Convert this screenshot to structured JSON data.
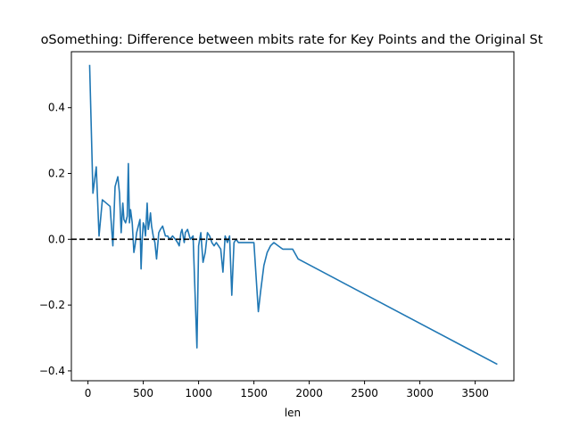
{
  "chart_data": {
    "type": "line",
    "title": "oSomething: Difference between mbits rate for Key Points and the Original St",
    "xlabel": "len",
    "ylabel": "",
    "xlim": [
      -150,
      3850
    ],
    "ylim": [
      -0.43,
      0.57
    ],
    "x_ticks": [
      0,
      500,
      1000,
      1500,
      2000,
      2500,
      3000,
      3500
    ],
    "x_tick_labels": [
      "0",
      "500",
      "1000",
      "1500",
      "2000",
      "2500",
      "3000",
      "3500"
    ],
    "y_ticks": [
      -0.4,
      -0.2,
      0.0,
      0.2,
      0.4
    ],
    "y_tick_labels": [
      "−0.4",
      "−0.2",
      "0.0",
      "0.2",
      "0.4"
    ],
    "grid": false,
    "reference_line": {
      "y": 0.0,
      "style": "dashed",
      "color": "#000000"
    },
    "series": [
      {
        "color": "#1f77b4",
        "x": [
          15,
          45,
          75,
          100,
          130,
          200,
          225,
          245,
          270,
          285,
          300,
          315,
          325,
          340,
          355,
          365,
          375,
          385,
          400,
          415,
          425,
          440,
          455,
          470,
          480,
          490,
          500,
          510,
          520,
          535,
          545,
          555,
          565,
          575,
          590,
          605,
          620,
          640,
          655,
          675,
          700,
          720,
          740,
          765,
          790,
          810,
          825,
          840,
          850,
          860,
          870,
          880,
          900,
          925,
          950,
          985,
          1000,
          1020,
          1040,
          1060,
          1080,
          1100,
          1120,
          1140,
          1160,
          1180,
          1200,
          1220,
          1240,
          1260,
          1280,
          1300,
          1320,
          1340,
          1360,
          1380,
          1400,
          1430,
          1460,
          1500,
          1540,
          1560,
          1590,
          1620,
          1650,
          1680,
          1720,
          1760,
          1800,
          1850,
          1900,
          3700
        ],
        "y": [
          0.53,
          0.14,
          0.22,
          0.01,
          0.12,
          0.1,
          -0.02,
          0.16,
          0.19,
          0.14,
          0.02,
          0.11,
          0.06,
          0.05,
          0.07,
          0.23,
          0.05,
          0.09,
          0.05,
          -0.04,
          -0.02,
          0.02,
          0.04,
          0.06,
          -0.09,
          0.0,
          0.05,
          0.04,
          0.01,
          0.11,
          0.03,
          0.05,
          0.08,
          0.04,
          0.01,
          -0.01,
          -0.06,
          0.02,
          0.03,
          0.04,
          0.01,
          0.01,
          0.0,
          0.01,
          0.0,
          -0.01,
          -0.02,
          0.02,
          0.03,
          0.01,
          -0.01,
          0.02,
          0.03,
          0.0,
          0.01,
          -0.33,
          -0.02,
          0.02,
          -0.07,
          -0.04,
          0.02,
          0.01,
          -0.01,
          -0.02,
          -0.01,
          -0.02,
          -0.03,
          -0.1,
          0.01,
          -0.01,
          0.01,
          -0.17,
          -0.01,
          0.0,
          -0.01,
          -0.01,
          -0.01,
          -0.01,
          -0.01,
          -0.01,
          -0.22,
          -0.16,
          -0.08,
          -0.04,
          -0.02,
          -0.01,
          -0.02,
          -0.03,
          -0.03,
          -0.03,
          -0.06,
          -0.38
        ]
      }
    ]
  }
}
